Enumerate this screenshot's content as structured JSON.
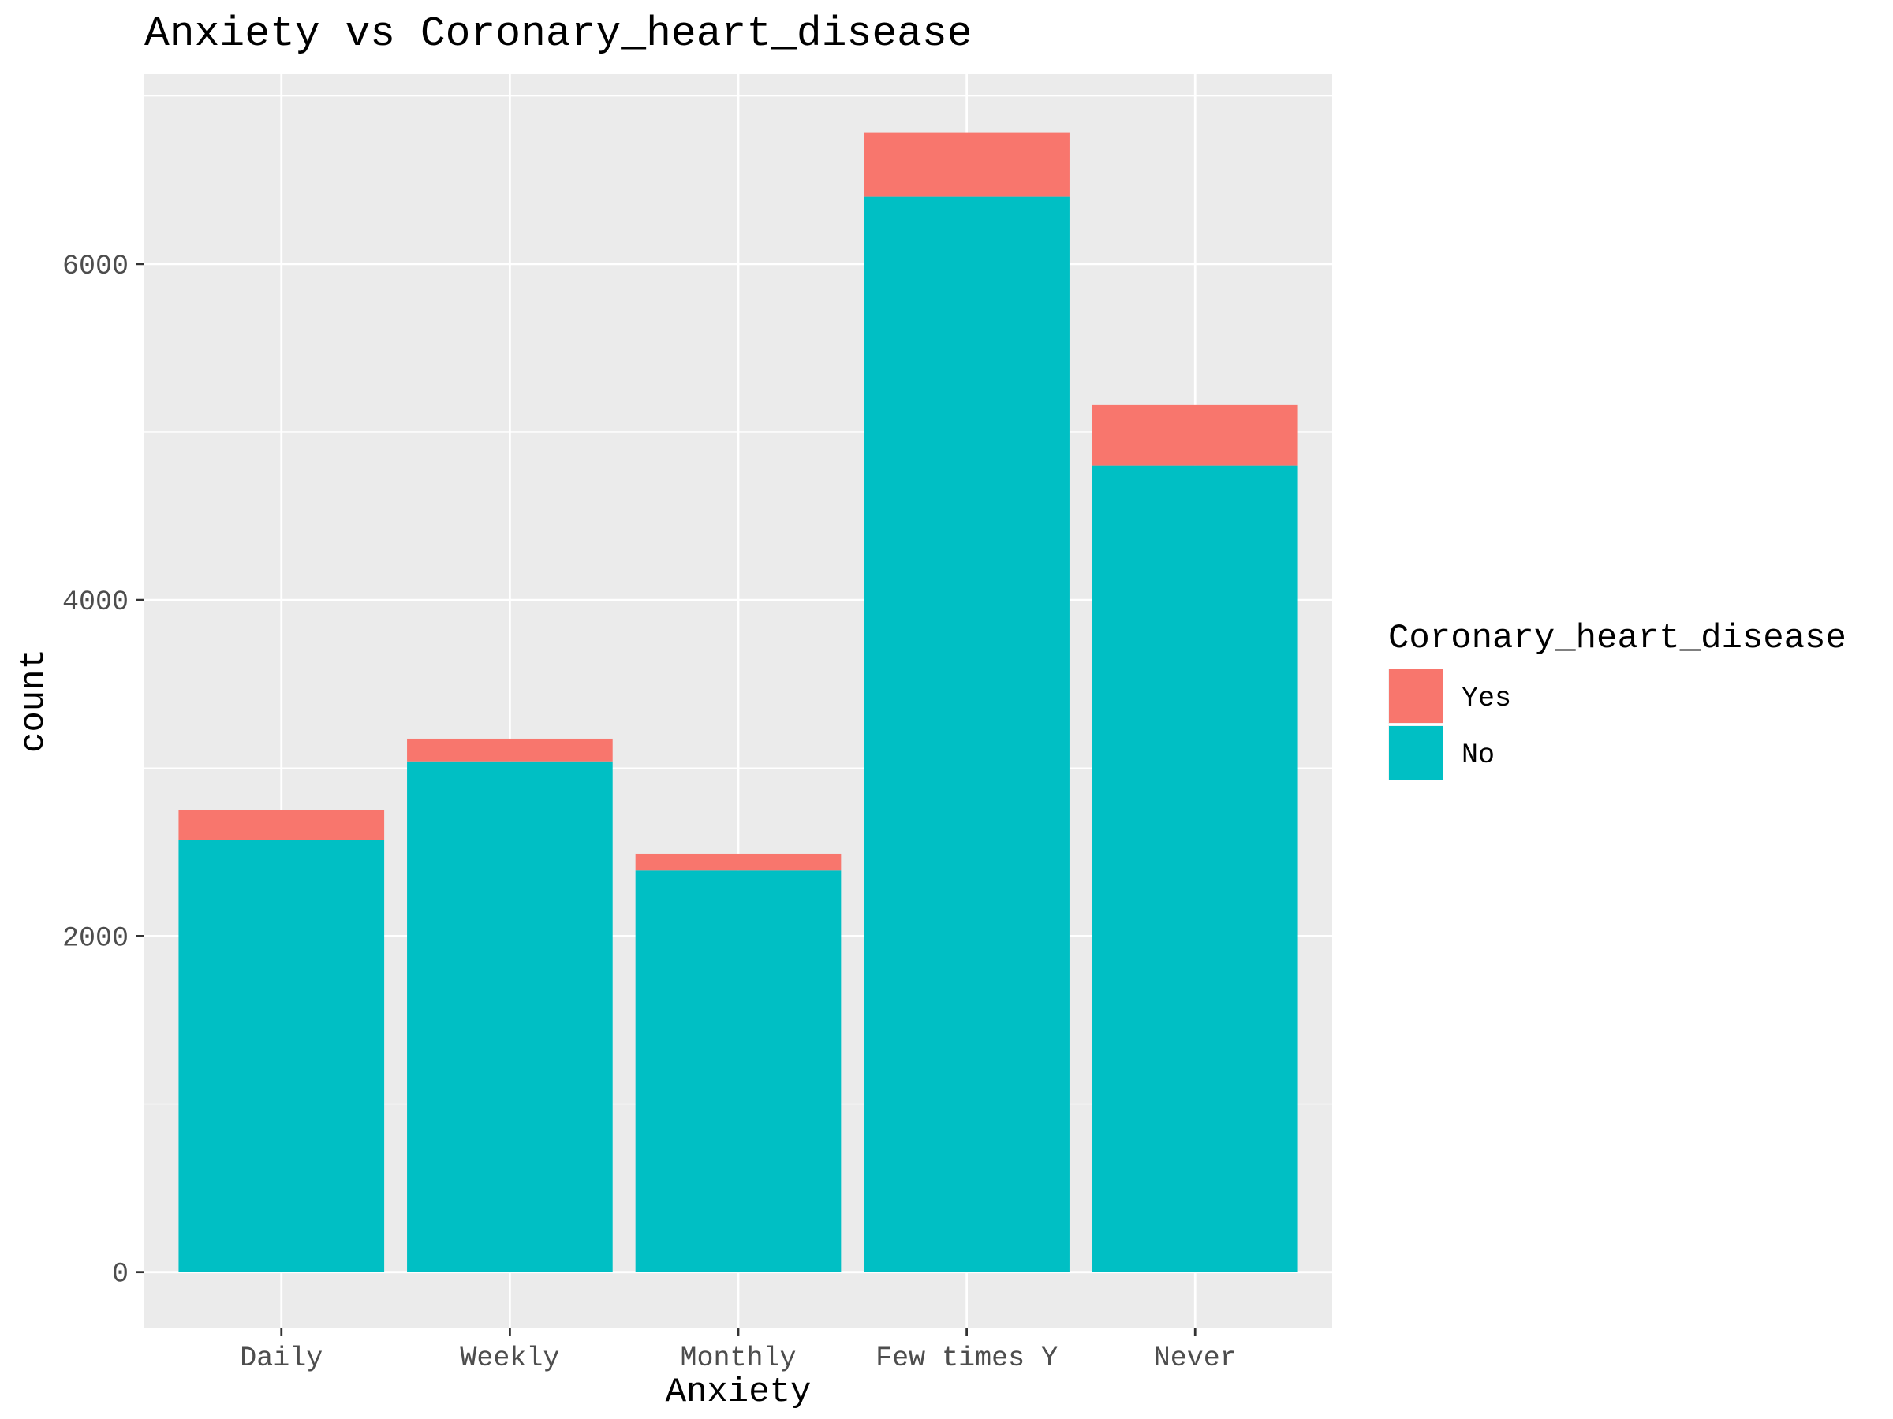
{
  "chart_data": {
    "type": "bar",
    "stacked": true,
    "title": "Anxiety vs Coronary_heart_disease",
    "xlabel": "Anxiety",
    "ylabel": "count",
    "categories": [
      "Daily",
      "Weekly",
      "Monthly",
      "Few times Y",
      "Never"
    ],
    "series": [
      {
        "name": "No",
        "color": "#00BFC4",
        "values": [
          2570,
          3040,
          2390,
          6400,
          4800
        ]
      },
      {
        "name": "Yes",
        "color": "#F8766D",
        "values": [
          180,
          135,
          100,
          380,
          360
        ]
      }
    ],
    "ylim": [
      -330,
      7130
    ],
    "yticks": [
      0,
      2000,
      4000,
      6000
    ],
    "yticks_minor": [
      1000,
      3000,
      5000,
      7000
    ],
    "grid": true,
    "panel_background": "#EBEBEB",
    "legend": {
      "title": "Coronary_heart_disease",
      "placement": "right",
      "order": [
        "Yes",
        "No"
      ]
    }
  }
}
